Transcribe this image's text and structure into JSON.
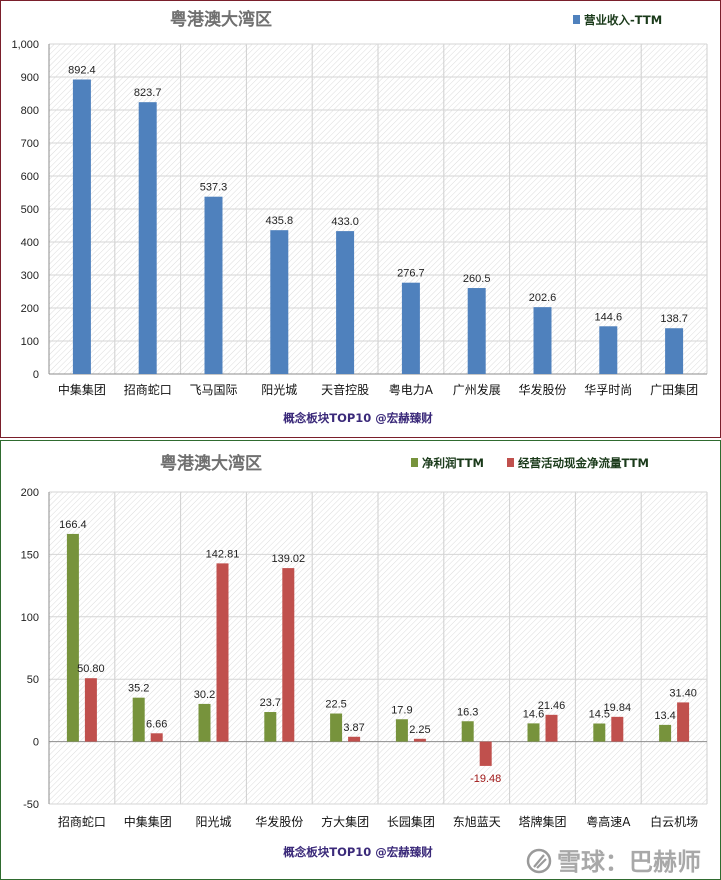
{
  "chart_data": [
    {
      "type": "bar",
      "title": "粤港澳大湾区",
      "categories": [
        "中集集团",
        "招商蛇口",
        "飞马国际",
        "阳光城",
        "天音控股",
        "粤电力A",
        "广州发展",
        "华发股份",
        "华孚时尚",
        "广田集团"
      ],
      "series": [
        {
          "name": "营业收入-TTM",
          "color": "#4f81bd",
          "values": [
            892.4,
            823.7,
            537.3,
            435.8,
            433.0,
            276.7,
            260.5,
            202.6,
            144.6,
            138.7
          ],
          "labels": [
            "892.4",
            "823.7",
            "537.3",
            "435.8",
            "433.0",
            "276.7",
            "260.5",
            "202.6",
            "144.6",
            "138.7"
          ]
        }
      ],
      "ylim": [
        0,
        1000
      ],
      "yticks": [
        0,
        100,
        200,
        300,
        400,
        500,
        600,
        700,
        800,
        900,
        1000
      ],
      "ytick_labels": [
        "0",
        "100",
        "200",
        "300",
        "400",
        "500",
        "600",
        "700",
        "800",
        "900",
        "1,000"
      ],
      "legend_position": "top-right",
      "grid": true,
      "footer": "概念板块TOP10 @宏赫臻财"
    },
    {
      "type": "bar",
      "title": "粤港澳大湾区",
      "categories": [
        "招商蛇口",
        "中集集团",
        "阳光城",
        "华发股份",
        "方大集团",
        "长园集团",
        "东旭蓝天",
        "塔牌集团",
        "粤高速A",
        "白云机场"
      ],
      "series": [
        {
          "name": "净利润TTM",
          "color": "#77933c",
          "values": [
            166.4,
            35.2,
            30.2,
            23.7,
            22.5,
            17.9,
            16.3,
            14.6,
            14.5,
            13.4
          ],
          "labels": [
            "166.4",
            "35.2",
            "30.2",
            "23.7",
            "22.5",
            "17.9",
            "16.3",
            "14.6",
            "14.5",
            "13.4"
          ]
        },
        {
          "name": "经营活动现金净流量TTM",
          "color": "#c0504d",
          "values": [
            50.8,
            6.66,
            142.81,
            139.02,
            3.87,
            2.25,
            -19.48,
            21.46,
            19.84,
            31.4
          ],
          "labels": [
            "50.80",
            "6.66",
            "142.81",
            "139.02",
            "3.87",
            "2.25",
            "-19.48",
            "21.46",
            "19.84",
            "31.40"
          ]
        }
      ],
      "ylim": [
        -50,
        200
      ],
      "yticks": [
        -50,
        0,
        50,
        100,
        150,
        200
      ],
      "ytick_labels": [
        "-50",
        "0",
        "50",
        "100",
        "150",
        "200"
      ],
      "legend_position": "top-right",
      "grid": true,
      "footer": "概念板块TOP10 @宏赫臻财"
    }
  ],
  "watermark": "雪球：巴赫师",
  "watermark_icon": "snowball-logo-icon"
}
